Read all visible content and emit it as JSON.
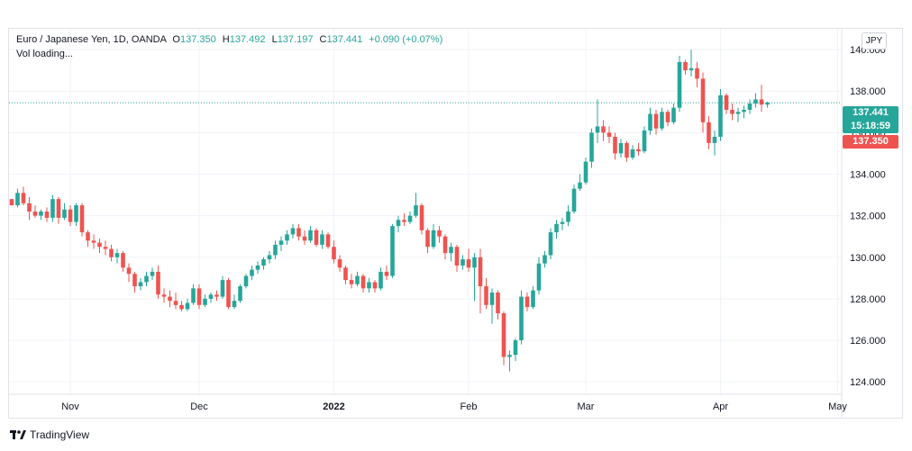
{
  "header": {
    "symbol_name": "Euro / Japanese Yen, 1D, OANDA",
    "open_label": "O",
    "open_value": "137.350",
    "high_label": "H",
    "high_value": "137.492",
    "low_label": "L",
    "low_value": "137.197",
    "close_label": "C",
    "close_value": "137.441",
    "change": "+0.090 (+0.07%)",
    "volume_status": "Vol loading...",
    "currency_button": "JPY"
  },
  "tags": {
    "last_price": "137.441",
    "countdown": "15:18:59",
    "open_price": "137.350"
  },
  "brand": {
    "label": "TradingView"
  },
  "colors": {
    "up": "#26a69a",
    "down": "#ef5350",
    "grid": "#f0f3fa",
    "axis_text": "#131722"
  },
  "chart_data": {
    "type": "candlestick",
    "title": "",
    "ylim": [
      123.4,
      141.0
    ],
    "y_ticks": [
      "124.000",
      "126.000",
      "128.000",
      "130.000",
      "132.000",
      "134.000",
      "136.000",
      "138.000",
      "140.000"
    ],
    "y_tick_values": [
      124,
      126,
      128,
      130,
      132,
      134,
      136,
      138,
      140
    ],
    "x_ticks": [
      {
        "label": "Nov",
        "bar": 10,
        "bold": false
      },
      {
        "label": "Dec",
        "bar": 32,
        "bold": false
      },
      {
        "label": "2022",
        "bar": 55,
        "bold": true
      },
      {
        "label": "Feb",
        "bar": 78,
        "bold": false
      },
      {
        "label": "Mar",
        "bar": 98,
        "bold": false
      },
      {
        "label": "Apr",
        "bar": 121,
        "bold": false
      },
      {
        "label": "May",
        "bar": 141,
        "bold": false
      }
    ],
    "last_price_line": 137.441,
    "candles": [
      [
        132.8,
        132.8,
        132.5,
        132.5
      ],
      [
        132.5,
        133.3,
        132.4,
        133.1
      ],
      [
        133.1,
        133.4,
        132.5,
        132.6
      ],
      [
        132.6,
        132.9,
        131.8,
        132.2
      ],
      [
        132.2,
        132.5,
        131.9,
        132.0
      ],
      [
        132.0,
        132.3,
        131.8,
        132.2
      ],
      [
        132.2,
        132.4,
        131.7,
        131.9
      ],
      [
        131.9,
        133.0,
        131.7,
        132.8
      ],
      [
        132.8,
        132.9,
        131.6,
        131.9
      ],
      [
        131.9,
        132.6,
        131.8,
        132.3
      ],
      [
        132.3,
        132.5,
        131.5,
        131.7
      ],
      [
        131.7,
        132.6,
        131.5,
        132.5
      ],
      [
        132.5,
        132.6,
        131.0,
        131.2
      ],
      [
        131.2,
        131.3,
        130.5,
        130.8
      ],
      [
        130.8,
        131.1,
        130.4,
        130.7
      ],
      [
        130.7,
        130.9,
        130.2,
        130.5
      ],
      [
        130.5,
        130.8,
        130.1,
        130.4
      ],
      [
        130.4,
        130.6,
        129.8,
        130.0
      ],
      [
        130.0,
        130.4,
        129.7,
        130.2
      ],
      [
        130.2,
        130.3,
        129.3,
        129.5
      ],
      [
        129.5,
        129.7,
        128.8,
        129.2
      ],
      [
        129.2,
        129.3,
        128.3,
        128.6
      ],
      [
        128.6,
        129.0,
        128.4,
        128.8
      ],
      [
        128.8,
        129.3,
        128.6,
        129.1
      ],
      [
        129.1,
        129.5,
        128.9,
        129.3
      ],
      [
        129.3,
        129.6,
        128.0,
        128.2
      ],
      [
        128.2,
        128.5,
        127.8,
        128.1
      ],
      [
        128.1,
        128.4,
        127.6,
        127.9
      ],
      [
        127.9,
        128.3,
        127.5,
        127.7
      ],
      [
        127.7,
        127.9,
        127.4,
        127.5
      ],
      [
        127.5,
        128.0,
        127.4,
        127.8
      ],
      [
        127.8,
        128.7,
        127.7,
        128.5
      ],
      [
        128.5,
        128.7,
        127.5,
        127.7
      ],
      [
        127.7,
        128.2,
        127.6,
        128.0
      ],
      [
        128.0,
        128.3,
        127.8,
        128.2
      ],
      [
        128.2,
        128.4,
        127.9,
        128.1
      ],
      [
        128.1,
        129.1,
        128.0,
        128.9
      ],
      [
        128.9,
        129.0,
        127.5,
        127.6
      ],
      [
        127.6,
        128.2,
        127.5,
        127.9
      ],
      [
        127.9,
        128.7,
        127.8,
        128.6
      ],
      [
        128.6,
        129.2,
        128.5,
        129.1
      ],
      [
        129.1,
        129.6,
        128.9,
        129.4
      ],
      [
        129.4,
        129.8,
        129.2,
        129.6
      ],
      [
        129.6,
        130.0,
        129.4,
        129.9
      ],
      [
        129.9,
        130.3,
        129.7,
        130.1
      ],
      [
        130.1,
        130.8,
        129.9,
        130.6
      ],
      [
        130.6,
        131.0,
        130.3,
        130.8
      ],
      [
        130.8,
        131.3,
        130.6,
        131.1
      ],
      [
        131.1,
        131.6,
        130.9,
        131.4
      ],
      [
        131.4,
        131.6,
        130.8,
        131.0
      ],
      [
        131.0,
        131.3,
        130.6,
        130.8
      ],
      [
        130.8,
        131.5,
        130.7,
        131.3
      ],
      [
        131.3,
        131.4,
        130.5,
        130.6
      ],
      [
        130.6,
        131.3,
        130.4,
        131.1
      ],
      [
        131.1,
        131.2,
        130.4,
        130.5
      ],
      [
        130.5,
        130.8,
        129.7,
        129.9
      ],
      [
        129.9,
        130.1,
        129.3,
        129.5
      ],
      [
        129.5,
        129.6,
        128.7,
        128.9
      ],
      [
        128.9,
        129.2,
        128.5,
        128.7
      ],
      [
        128.7,
        129.3,
        128.6,
        129.1
      ],
      [
        129.1,
        129.2,
        128.3,
        128.5
      ],
      [
        128.5,
        129.0,
        128.3,
        128.8
      ],
      [
        128.8,
        128.9,
        128.3,
        128.5
      ],
      [
        128.5,
        129.5,
        128.4,
        129.3
      ],
      [
        129.3,
        129.6,
        128.9,
        129.1
      ],
      [
        129.1,
        131.6,
        129.0,
        131.5
      ],
      [
        131.5,
        132.0,
        131.2,
        131.8
      ],
      [
        131.8,
        132.1,
        131.5,
        131.7
      ],
      [
        131.7,
        132.2,
        131.6,
        132.0
      ],
      [
        132.0,
        133.1,
        131.9,
        132.5
      ],
      [
        132.5,
        132.6,
        131.1,
        131.3
      ],
      [
        131.3,
        131.4,
        130.2,
        130.5
      ],
      [
        130.5,
        131.6,
        130.4,
        131.3
      ],
      [
        131.3,
        131.5,
        130.7,
        131.0
      ],
      [
        131.0,
        131.1,
        129.9,
        130.2
      ],
      [
        130.2,
        130.7,
        129.8,
        130.5
      ],
      [
        130.5,
        130.6,
        129.3,
        129.6
      ],
      [
        129.6,
        130.1,
        129.4,
        129.9
      ],
      [
        129.9,
        130.4,
        129.3,
        129.5
      ],
      [
        129.5,
        130.2,
        127.9,
        130.0
      ],
      [
        130.0,
        130.4,
        127.3,
        128.6
      ],
      [
        128.6,
        129.0,
        127.5,
        127.7
      ],
      [
        127.7,
        128.5,
        126.8,
        128.3
      ],
      [
        128.3,
        128.4,
        127.0,
        127.3
      ],
      [
        127.3,
        127.4,
        124.8,
        125.2
      ],
      [
        125.2,
        125.5,
        124.5,
        125.3
      ],
      [
        125.3,
        126.1,
        125.0,
        126.0
      ],
      [
        126.0,
        128.4,
        125.8,
        128.1
      ],
      [
        128.1,
        128.3,
        127.4,
        127.6
      ],
      [
        127.6,
        128.6,
        127.5,
        128.4
      ],
      [
        128.4,
        130.0,
        128.2,
        129.7
      ],
      [
        129.7,
        130.3,
        129.5,
        130.1
      ],
      [
        130.1,
        131.4,
        129.9,
        131.2
      ],
      [
        131.2,
        131.8,
        130.9,
        131.6
      ],
      [
        131.6,
        131.9,
        131.3,
        131.7
      ],
      [
        131.7,
        132.5,
        131.5,
        132.2
      ],
      [
        132.2,
        133.5,
        132.1,
        133.3
      ],
      [
        133.3,
        134.0,
        133.2,
        133.6
      ],
      [
        133.6,
        134.8,
        133.5,
        134.6
      ],
      [
        134.6,
        136.2,
        134.3,
        136.0
      ],
      [
        136.0,
        137.6,
        135.5,
        136.3
      ],
      [
        136.3,
        136.6,
        135.6,
        136.0
      ],
      [
        136.0,
        136.3,
        135.5,
        135.8
      ],
      [
        135.8,
        136.0,
        134.7,
        135.0
      ],
      [
        135.0,
        135.7,
        134.8,
        135.5
      ],
      [
        135.5,
        135.6,
        134.6,
        134.8
      ],
      [
        134.8,
        135.4,
        134.7,
        135.2
      ],
      [
        135.2,
        135.5,
        134.9,
        135.1
      ],
      [
        135.1,
        136.3,
        135.0,
        136.1
      ],
      [
        136.1,
        137.2,
        135.9,
        136.9
      ],
      [
        136.9,
        137.1,
        135.9,
        136.2
      ],
      [
        136.2,
        137.2,
        136.1,
        137.0
      ],
      [
        137.0,
        137.1,
        136.3,
        136.5
      ],
      [
        136.5,
        137.4,
        136.4,
        137.2
      ],
      [
        137.2,
        139.7,
        137.0,
        139.4
      ],
      [
        139.4,
        139.5,
        138.8,
        139.0
      ],
      [
        139.0,
        140.0,
        138.7,
        139.1
      ],
      [
        139.1,
        139.4,
        138.2,
        138.6
      ],
      [
        138.6,
        138.9,
        136.0,
        136.5
      ],
      [
        136.5,
        136.8,
        135.2,
        135.5
      ],
      [
        135.5,
        136.1,
        134.9,
        135.8
      ],
      [
        135.8,
        138.1,
        135.6,
        137.8
      ],
      [
        137.8,
        137.9,
        136.9,
        137.1
      ],
      [
        137.1,
        137.4,
        136.6,
        136.9
      ],
      [
        136.9,
        137.2,
        136.5,
        137.0
      ],
      [
        137.0,
        137.3,
        136.7,
        137.1
      ],
      [
        137.1,
        137.6,
        136.9,
        137.4
      ],
      [
        137.4,
        137.9,
        137.2,
        137.6
      ],
      [
        137.6,
        138.3,
        137.0,
        137.35
      ],
      [
        137.35,
        137.49,
        137.2,
        137.44
      ]
    ]
  }
}
